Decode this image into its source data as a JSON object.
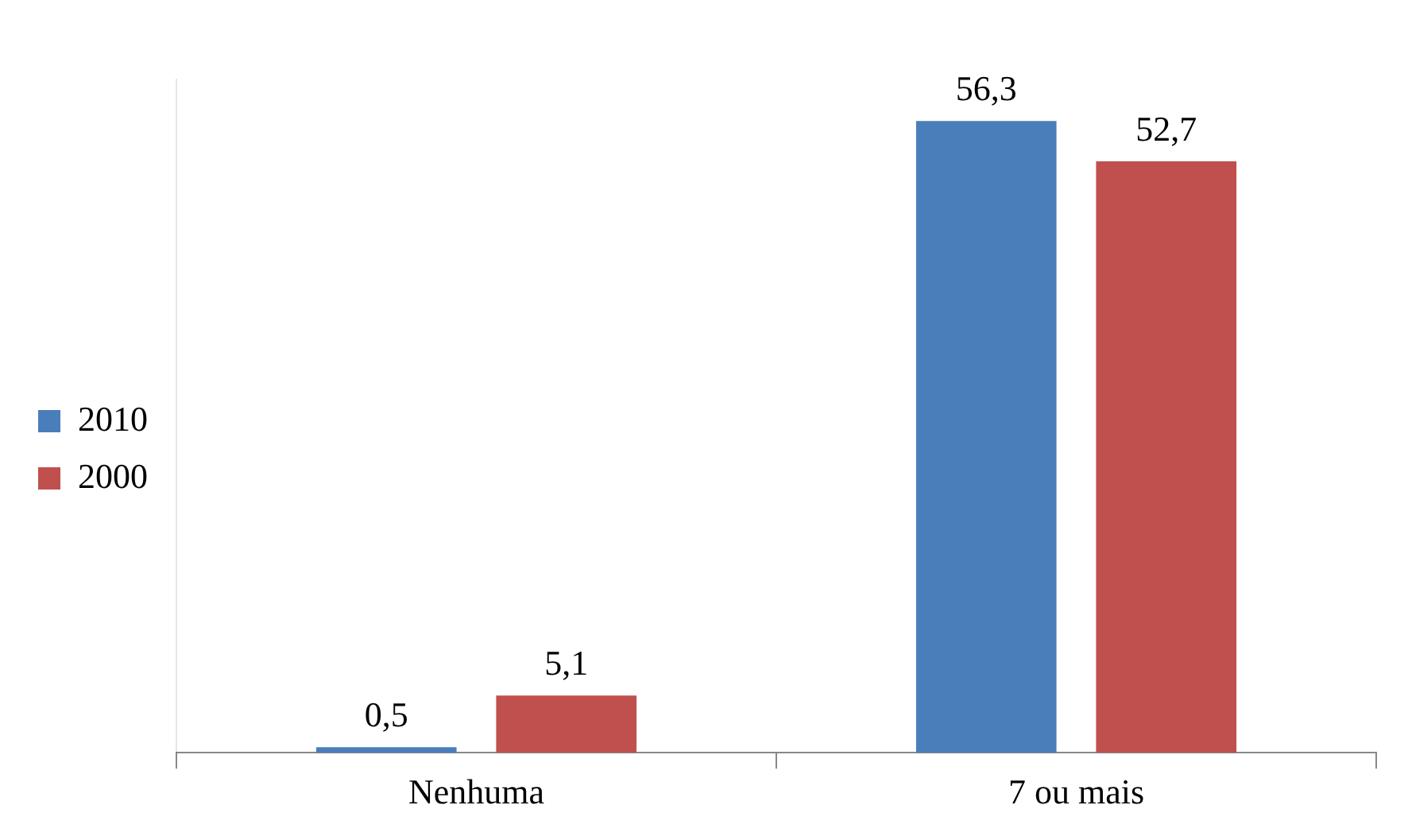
{
  "chart_data": {
    "type": "bar",
    "categories": [
      "Nenhuma",
      "7 ou mais"
    ],
    "series": [
      {
        "name": "2010",
        "color": "#4a7ebb",
        "values": [
          0.5,
          56.3
        ],
        "value_labels": [
          "0,5",
          "56,3"
        ]
      },
      {
        "name": "2000",
        "color": "#c0504d",
        "values": [
          5.1,
          52.7
        ],
        "value_labels": [
          "5,1",
          "52,7"
        ]
      }
    ],
    "legend": "left",
    "grid": false,
    "tick_labels": "x"
  }
}
